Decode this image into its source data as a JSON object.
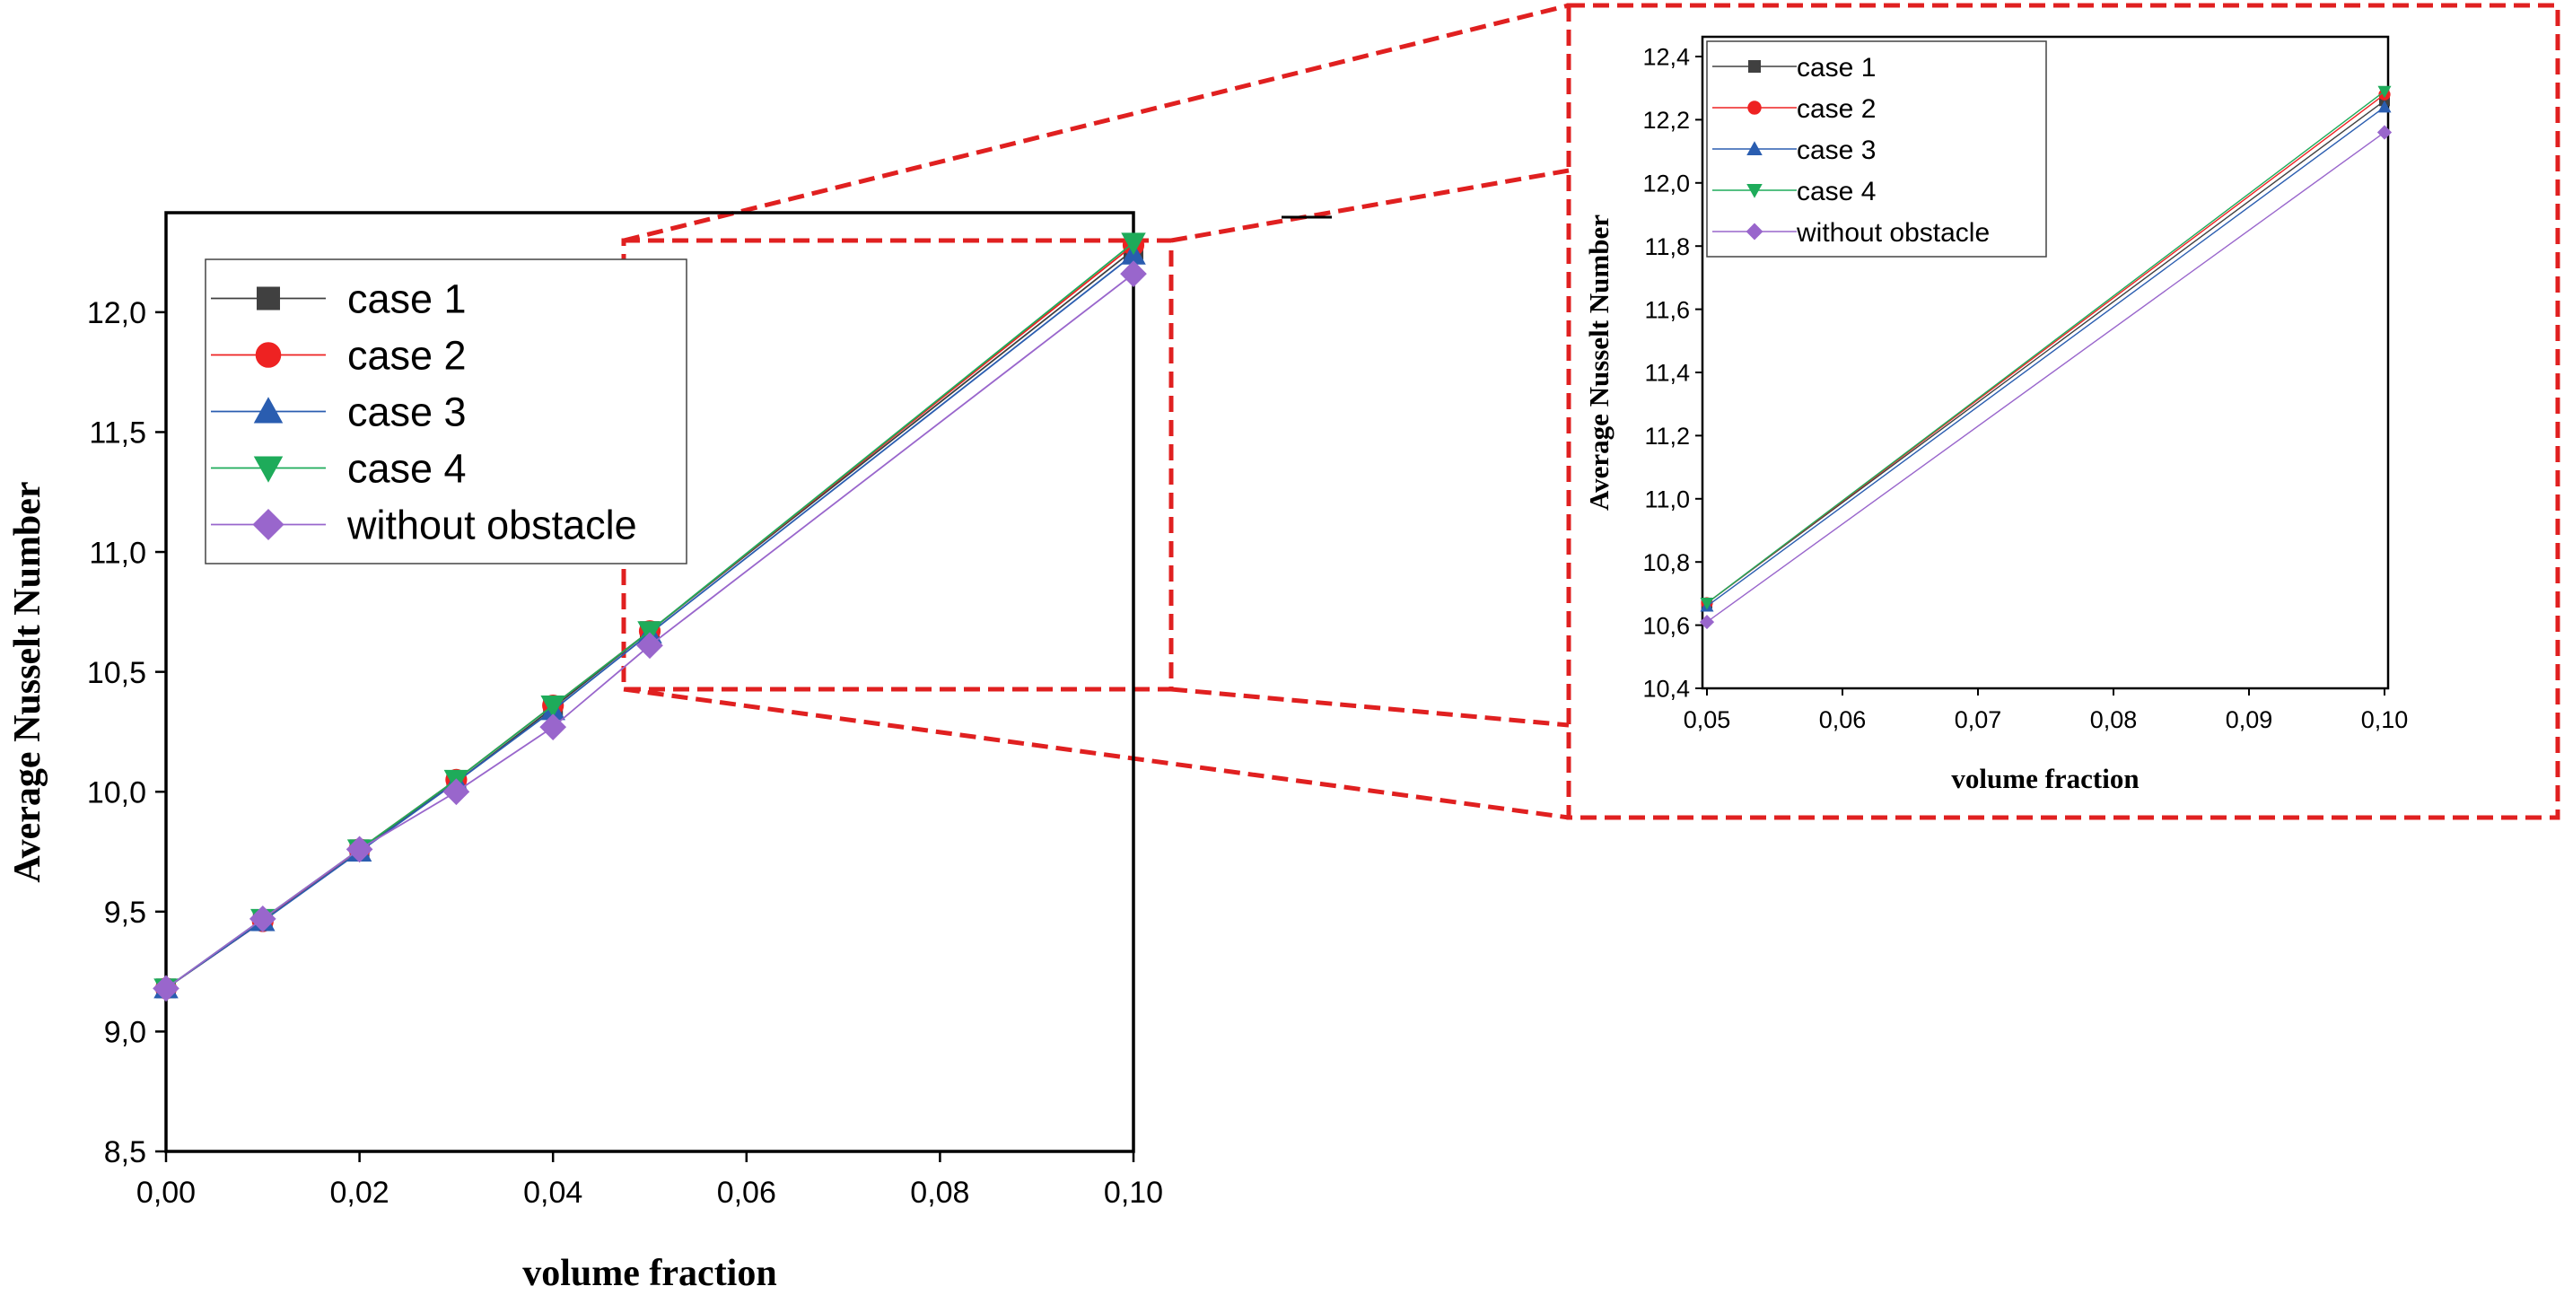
{
  "chart_data": [
    {
      "type": "line",
      "panel": "main",
      "xlabel": "volume fraction",
      "ylabel": "Average Nusselt Number",
      "xlim": [
        0.0,
        0.1
      ],
      "ylim": [
        8.5,
        12.4
      ],
      "x_ticks": [
        "0,00",
        "0,02",
        "0,04",
        "0,06",
        "0,08",
        "0,10"
      ],
      "y_ticks": [
        "8,5",
        "9,0",
        "9,5",
        "10,0",
        "10,5",
        "11,0",
        "11,5",
        "12,0"
      ],
      "x": [
        0.0,
        0.01,
        0.02,
        0.03,
        0.04,
        0.05,
        0.1
      ],
      "series": [
        {
          "name": "case 1",
          "marker": "square",
          "color": "#404040",
          "values": [
            9.18,
            9.46,
            9.76,
            10.04,
            10.35,
            10.67,
            12.26
          ]
        },
        {
          "name": "case 2",
          "marker": "circle",
          "color": "#ee2222",
          "values": [
            9.18,
            9.46,
            9.76,
            10.05,
            10.36,
            10.67,
            12.28
          ]
        },
        {
          "name": "case 3",
          "marker": "triangle-up",
          "color": "#2a5db0",
          "values": [
            9.18,
            9.46,
            9.75,
            10.04,
            10.34,
            10.66,
            12.24
          ]
        },
        {
          "name": "case 4",
          "marker": "triangle-down",
          "color": "#1eab5a",
          "values": [
            9.18,
            9.47,
            9.76,
            10.05,
            10.36,
            10.67,
            12.29
          ]
        },
        {
          "name": "without obstacle",
          "marker": "diamond",
          "color": "#9966cc",
          "values": [
            9.18,
            9.47,
            9.76,
            10.0,
            10.27,
            10.61,
            12.16
          ]
        }
      ],
      "legend_position": "top-left",
      "grid": false
    },
    {
      "type": "line",
      "panel": "zoom-inset",
      "xlabel": "volume fraction",
      "ylabel": "Average Nusselt Number",
      "xlim": [
        0.05,
        0.1
      ],
      "ylim": [
        10.4,
        12.4
      ],
      "x_ticks": [
        "0,05",
        "0,06",
        "0,07",
        "0,08",
        "0,09",
        "0,10"
      ],
      "y_ticks": [
        "10,4",
        "10,6",
        "10,8",
        "11,0",
        "11,2",
        "11,4",
        "11,6",
        "11,8",
        "12,0",
        "12,2",
        "12,4"
      ],
      "x": [
        0.05,
        0.1
      ],
      "series": [
        {
          "name": "case 1",
          "marker": "square",
          "color": "#404040",
          "values": [
            10.67,
            12.26
          ]
        },
        {
          "name": "case 2",
          "marker": "circle",
          "color": "#ee2222",
          "values": [
            10.67,
            12.28
          ]
        },
        {
          "name": "case 3",
          "marker": "triangle-up",
          "color": "#2a5db0",
          "values": [
            10.66,
            12.24
          ]
        },
        {
          "name": "case 4",
          "marker": "triangle-down",
          "color": "#1eab5a",
          "values": [
            10.67,
            12.29
          ]
        },
        {
          "name": "without obstacle",
          "marker": "diamond",
          "color": "#9966cc",
          "values": [
            10.61,
            12.16
          ]
        }
      ],
      "legend_position": "top-left",
      "grid": false
    }
  ],
  "zoom_box_color": "#e02020"
}
